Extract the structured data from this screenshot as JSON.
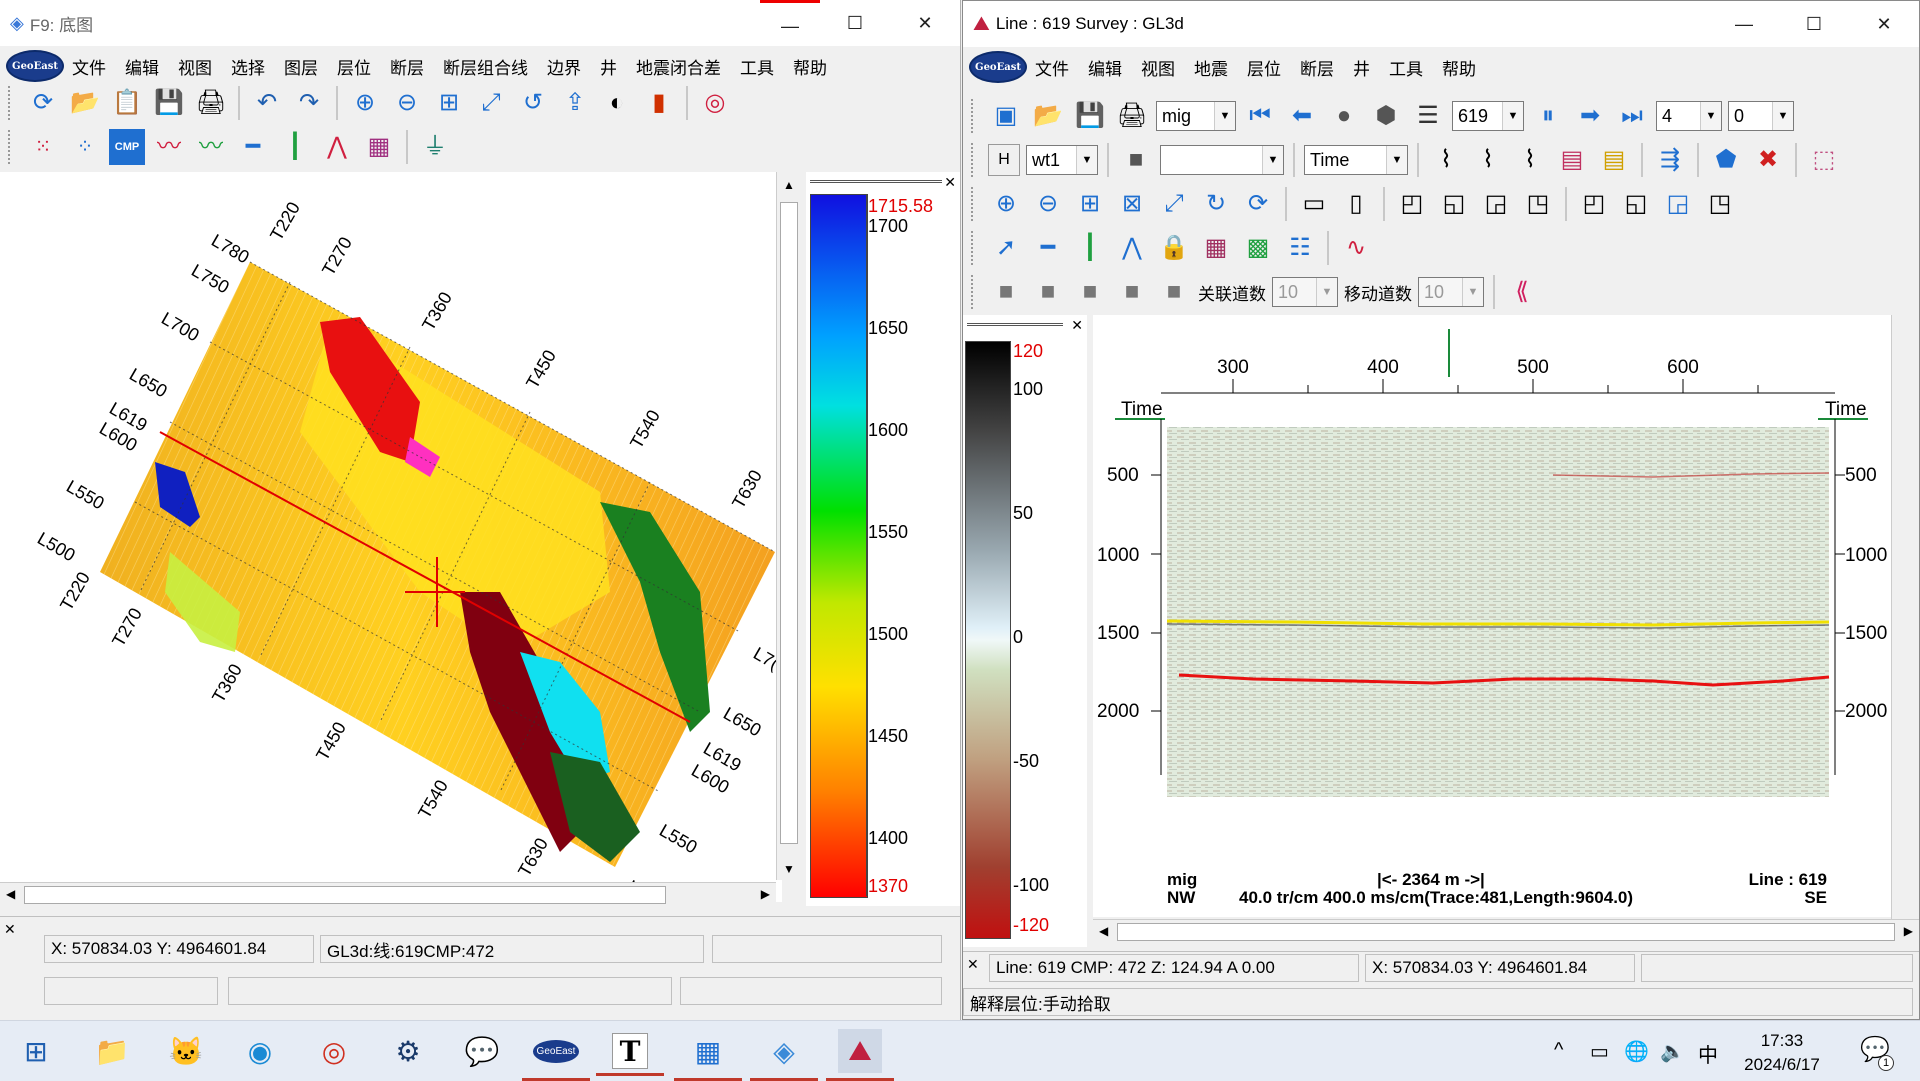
{
  "left_window": {
    "title": "F9: 底图",
    "menu": [
      "文件",
      "编辑",
      "视图",
      "选择",
      "图层",
      "层位",
      "断层",
      "断层组合线",
      "边界",
      "井",
      "地震闭合差",
      "工具",
      "帮助"
    ],
    "map_labels": {
      "lines_top": [
        "L780",
        "L750",
        "L700",
        "L650",
        "L619",
        "L600",
        "L550",
        "L500"
      ],
      "traces_top": [
        "T220",
        "T270",
        "T360",
        "T450",
        "T540",
        "T630"
      ],
      "traces_bottom": [
        "T220",
        "T270",
        "T360",
        "T450",
        "T540",
        "T630"
      ],
      "lines_right": [
        "L7(",
        "L650",
        "L619",
        "L600",
        "L550",
        "L5("
      ]
    },
    "colorbar": {
      "max_label": "1715.58",
      "min_label": "1370",
      "ticks": [
        "1700",
        "1650",
        "1600",
        "1550",
        "1500",
        "1450",
        "1400"
      ]
    },
    "status": {
      "coords": "X: 570834.03    Y: 4964601.84",
      "cmp": "GL3d:线:619CMP:472"
    }
  },
  "right_window": {
    "title": "Line : 619  Survey : GL3d",
    "menu": [
      "文件",
      "编辑",
      "视图",
      "地震",
      "层位",
      "断层",
      "井",
      "工具",
      "帮助"
    ],
    "toolbar1": {
      "data_type": "mig",
      "line": "619",
      "step1": "4",
      "step2": "0"
    },
    "toolbar2": {
      "h_label": "H",
      "well": "wt1",
      "blank": "",
      "domain": "Time"
    },
    "toolbar5": {
      "assoc_label": "关联道数",
      "assoc_value": "10",
      "move_label": "移动道数",
      "move_value": "10"
    },
    "colorbar": {
      "max_label": "120",
      "min_label": "-120",
      "ticks": [
        "100",
        "50",
        "0",
        "-50",
        "-100"
      ]
    },
    "section": {
      "x_ticks": [
        "300",
        "400",
        "500",
        "600"
      ],
      "time_label": "Time",
      "y_ticks": [
        "500",
        "1000",
        "1500",
        "2000"
      ],
      "footer_left_top": "mig",
      "footer_left_bottom": "NW",
      "scale_bar": "|<-   2364 m   ->|",
      "footer_center": "40.0 tr/cm 400.0 ms/cm(Trace:481,Length:9604.0)",
      "footer_right_top": "Line : 619",
      "footer_right_bottom": "SE"
    },
    "status": {
      "line_info": "Line:  619  CMP:  472  Z: 124.94  A  0.00",
      "coords": "X: 570834.03   Y: 4964601.84",
      "mode": "解释层位:手动拾取"
    }
  },
  "taskbar": {
    "time": "17:33",
    "date": "2024/6/17",
    "ime": "中",
    "notif_count": "1"
  }
}
